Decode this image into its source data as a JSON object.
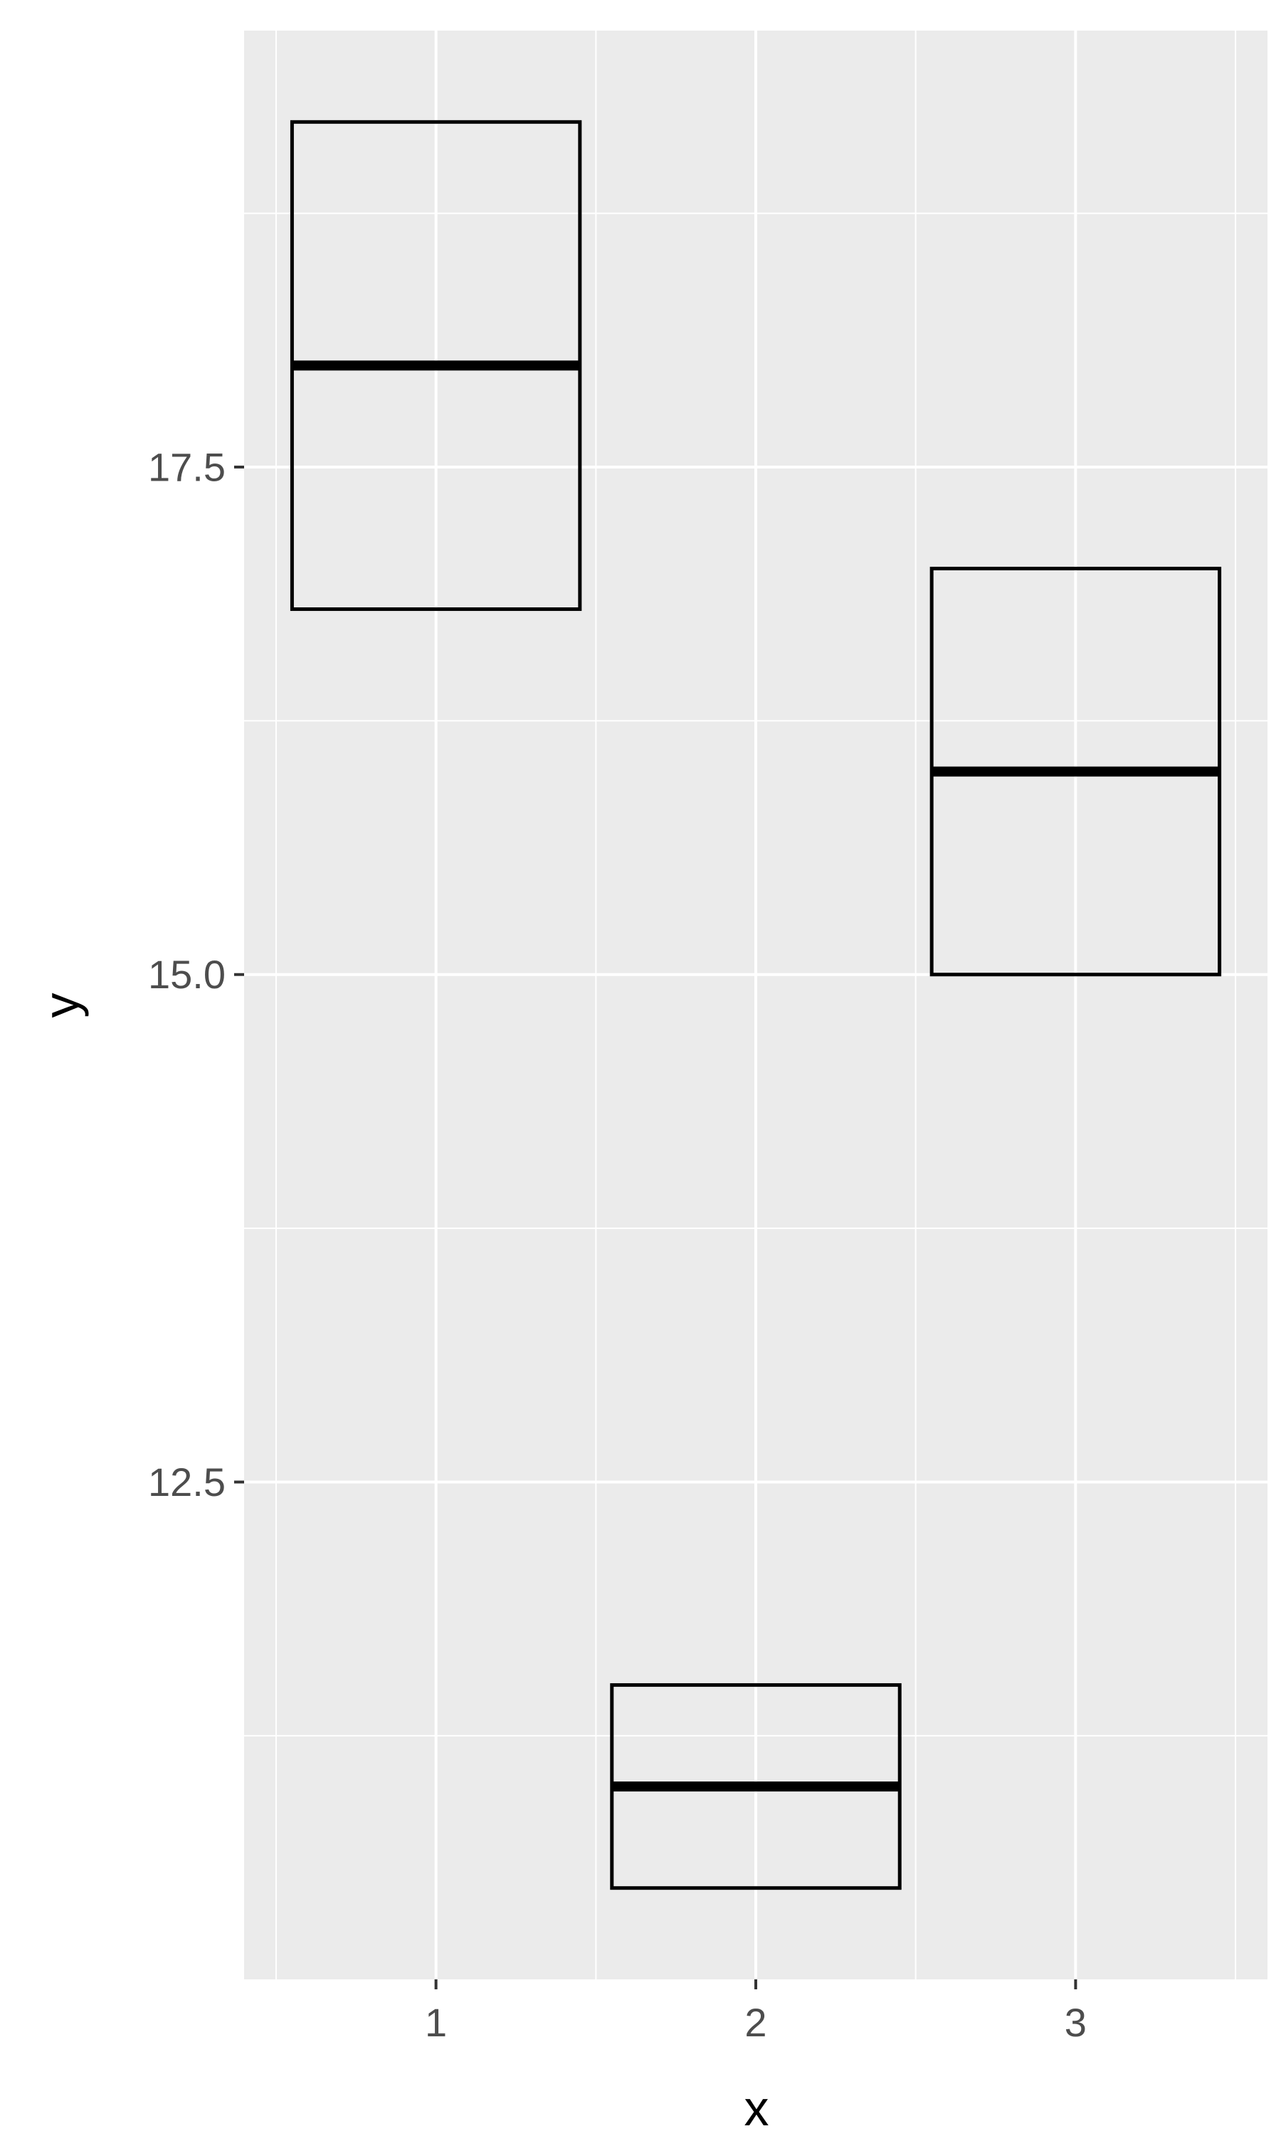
{
  "chart_data": {
    "type": "crossbar",
    "title": "",
    "xlabel": "x",
    "ylabel": "y",
    "x_categories": [
      "1",
      "2",
      "3"
    ],
    "x_range": [
      0.4,
      3.6
    ],
    "ylim": [
      10.05,
      19.65
    ],
    "y_ticks": [
      12.5,
      15.0,
      17.5
    ],
    "y_tick_labels": [
      "12.5",
      "15.0",
      "17.5"
    ],
    "grid": true,
    "background": "#ebebeb",
    "grid_color": "#ffffff",
    "box_color": "#000000",
    "boxes": [
      {
        "x": 1,
        "ymin": 16.8,
        "middle": 18.0,
        "ymax": 19.2
      },
      {
        "x": 2,
        "ymin": 10.5,
        "middle": 11.0,
        "ymax": 11.5
      },
      {
        "x": 3,
        "ymin": 15.0,
        "middle": 16.0,
        "ymax": 17.0
      }
    ]
  }
}
